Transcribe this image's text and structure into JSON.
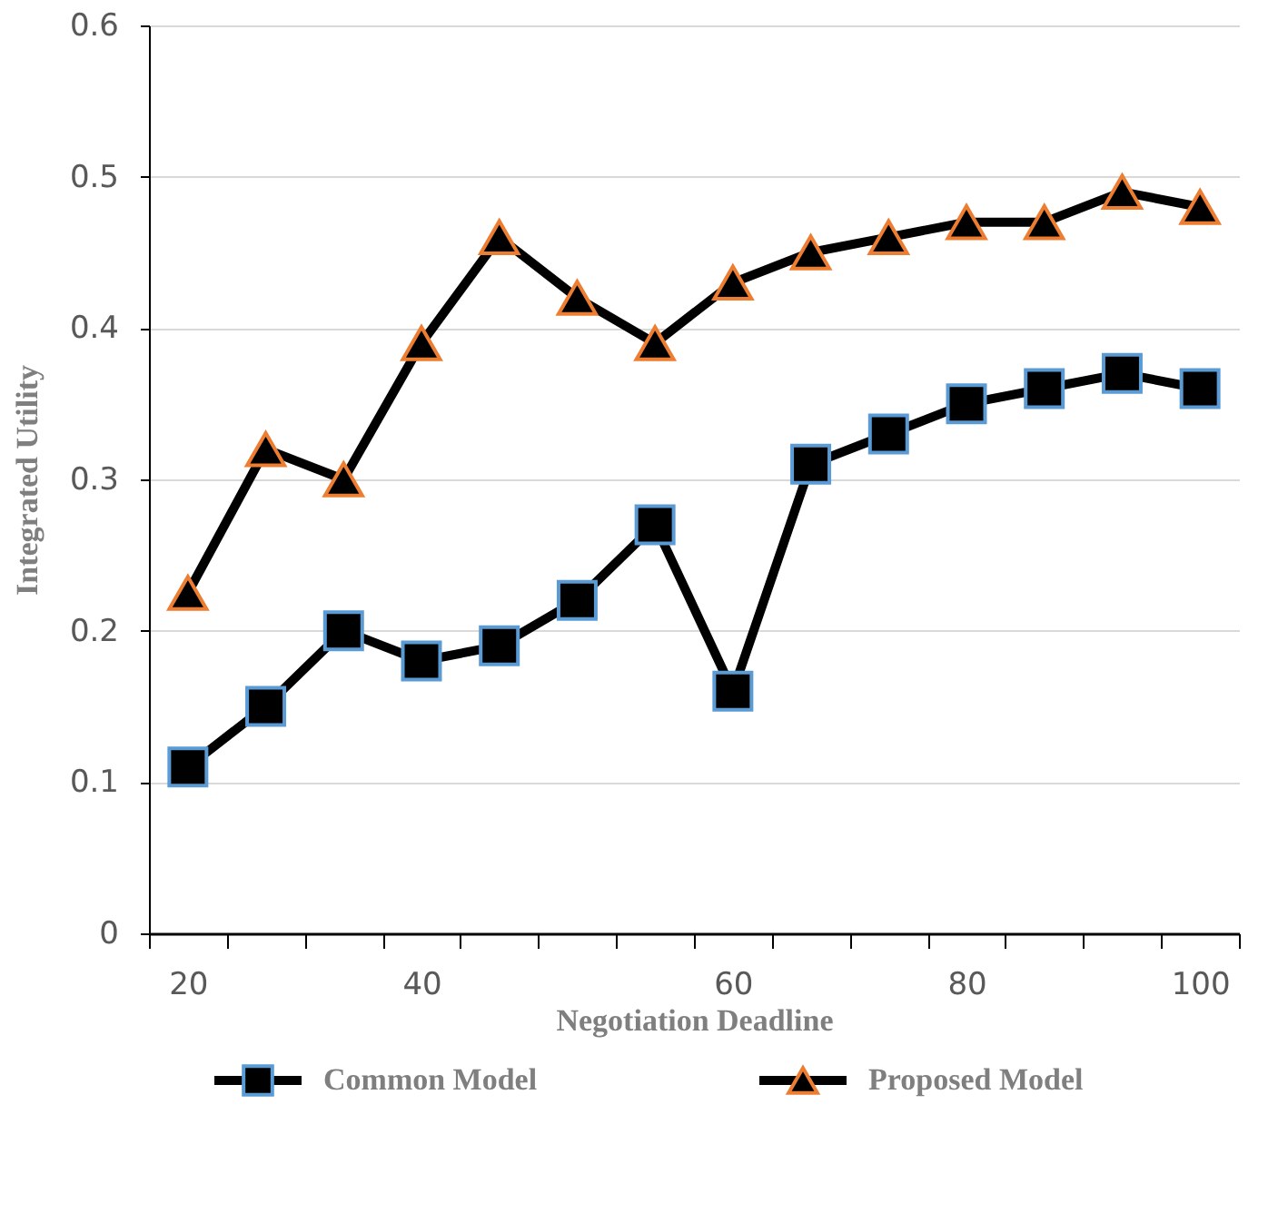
{
  "chart_data": {
    "type": "line",
    "xlabel": "Negotiation Deadline",
    "ylabel": "Integrated Utility",
    "categories": [
      "20",
      null,
      null,
      "40",
      null,
      null,
      null,
      "60",
      null,
      null,
      "80",
      null,
      null,
      "100"
    ],
    "series": [
      {
        "name": "Common Model",
        "color": "#000000",
        "marker": "square",
        "values": [
          0.11,
          0.15,
          0.2,
          0.18,
          0.19,
          0.22,
          0.27,
          0.16,
          0.31,
          0.33,
          0.35,
          0.36,
          0.37,
          0.36
        ]
      },
      {
        "name": "Proposed Model",
        "color": "#000000",
        "marker": "triangle",
        "values": [
          0.225,
          0.32,
          0.3,
          0.39,
          0.46,
          0.42,
          0.39,
          0.43,
          0.45,
          0.46,
          0.47,
          0.47,
          0.49,
          0.48
        ]
      }
    ],
    "ylim": [
      0,
      0.6
    ],
    "yticks": [
      0,
      0.1,
      0.2,
      0.3,
      0.4,
      0.5,
      0.6
    ],
    "grid": "y",
    "legend": "bottom",
    "line_style": "solid"
  }
}
